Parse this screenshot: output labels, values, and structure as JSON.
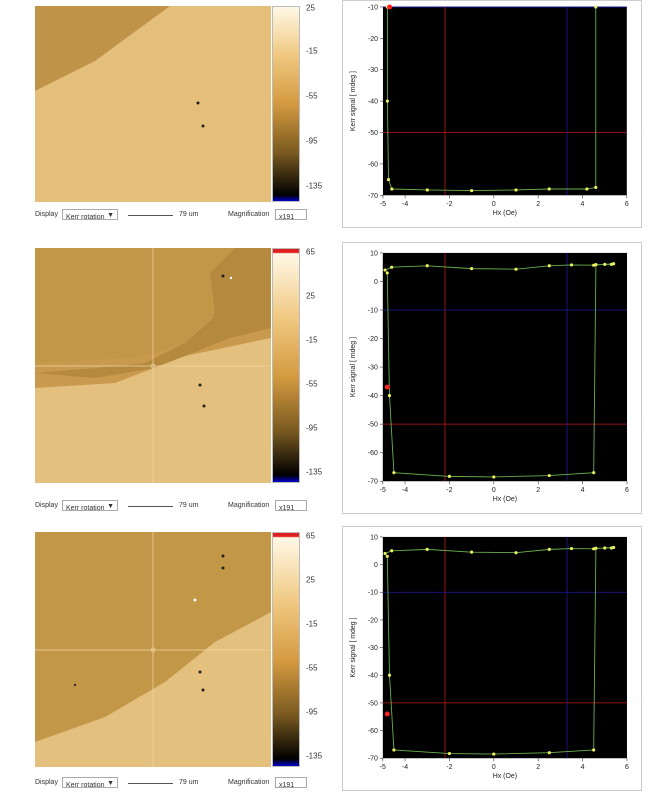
{
  "panels": [
    {
      "colorbar_ticks": [
        "25",
        "-15",
        "-55",
        "-95",
        "-135"
      ],
      "controls": {
        "display_label": "Display",
        "display_value": "Kerr rotation",
        "scale_label": "79 um",
        "magnification_label": "Magnification",
        "magnification_value": "x191"
      }
    },
    {
      "colorbar_ticks": [
        "65",
        "25",
        "-15",
        "-55",
        "-95",
        "-135"
      ],
      "controls": {
        "display_label": "Display",
        "display_value": "Kerr rotation",
        "scale_label": "79 um",
        "magnification_label": "Magnification",
        "magnification_value": "x191"
      }
    },
    {
      "colorbar_ticks": [
        "65",
        "25",
        "-15",
        "-55",
        "-95",
        "-135"
      ],
      "controls": {
        "display_label": "Display",
        "display_value": "Kerr rotation",
        "scale_label": "79 um",
        "magnification_label": "Magnification",
        "magnification_value": "x191"
      }
    }
  ],
  "chart_data": [
    {
      "type": "line",
      "xlabel": "Hx (Oe)",
      "ylabel": "Kerr signal [ mdeg ]",
      "xlim": [
        -5,
        6
      ],
      "ylim": [
        -70,
        -10
      ],
      "xticks": [
        -5,
        -4,
        -2,
        0,
        2,
        4,
        6
      ],
      "yticks": [
        -10,
        -20,
        -30,
        -40,
        -50,
        -60,
        -70
      ],
      "cursor_red": {
        "x": -2.2,
        "y": -50
      },
      "cursor_blue": {
        "x": 3.3,
        "y": -10
      },
      "marker_red": {
        "x": -4.7,
        "y": -10
      },
      "series": [
        {
          "x": [
            -4.8,
            -4.8,
            -4.75,
            -4.6,
            -3,
            -1,
            1,
            2.5,
            4.2,
            4.6,
            4.6
          ],
          "y": [
            -10,
            -40,
            -65,
            -68,
            -68.3,
            -68.5,
            -68.3,
            -68,
            -68,
            -67.5,
            -10
          ]
        }
      ]
    },
    {
      "type": "line",
      "xlabel": "Hx (Oe)",
      "ylabel": "Kerr signal [ mdeg ]",
      "xlim": [
        -5,
        6
      ],
      "ylim": [
        -70,
        10
      ],
      "xticks": [
        -5,
        -4,
        -2,
        0,
        2,
        4,
        6
      ],
      "yticks": [
        10,
        0,
        -10,
        -20,
        -30,
        -40,
        -50,
        -60,
        -70
      ],
      "cursor_red": {
        "x": -2.2,
        "y": -50
      },
      "cursor_blue": {
        "x": 3.3,
        "y": -10
      },
      "marker_red": {
        "x": -4.8,
        "y": -37
      },
      "series": [
        {
          "x": [
            -4.9,
            -4.6,
            -3,
            -1,
            1,
            2.5,
            3.5,
            4.5,
            5.0,
            5.4,
            5.3,
            4.6,
            4.5,
            2.5,
            0,
            -2,
            -4.5,
            -4.7,
            -4.8
          ],
          "y": [
            4,
            5,
            5.5,
            4.5,
            4.3,
            5.5,
            5.8,
            5.7,
            6,
            6.2,
            6.0,
            5.9,
            -67,
            -68,
            -68.5,
            -68.3,
            -67,
            -40,
            3
          ]
        }
      ]
    },
    {
      "type": "line",
      "xlabel": "Hx (Oe)",
      "ylabel": "Kerr signal [ mdeg ]",
      "xlim": [
        -5,
        6
      ],
      "ylim": [
        -70,
        10
      ],
      "xticks": [
        -5,
        -4,
        -2,
        0,
        2,
        4,
        6
      ],
      "yticks": [
        10,
        0,
        -10,
        -20,
        -30,
        -40,
        -50,
        -60,
        -70
      ],
      "cursor_red": {
        "x": -2.2,
        "y": -50
      },
      "cursor_blue": {
        "x": 3.3,
        "y": -10
      },
      "marker_red": {
        "x": -4.8,
        "y": -54
      },
      "series": [
        {
          "x": [
            -4.9,
            -4.6,
            -3,
            -1,
            1,
            2.5,
            3.5,
            4.5,
            5.0,
            5.4,
            5.3,
            4.6,
            4.5,
            2.5,
            0,
            -2,
            -4.5,
            -4.7,
            -4.8
          ],
          "y": [
            4,
            5,
            5.5,
            4.5,
            4.3,
            5.5,
            5.8,
            5.7,
            6,
            6.2,
            6.0,
            5.9,
            -67,
            -68,
            -68.5,
            -68.3,
            -67,
            -40,
            3
          ]
        }
      ]
    }
  ]
}
